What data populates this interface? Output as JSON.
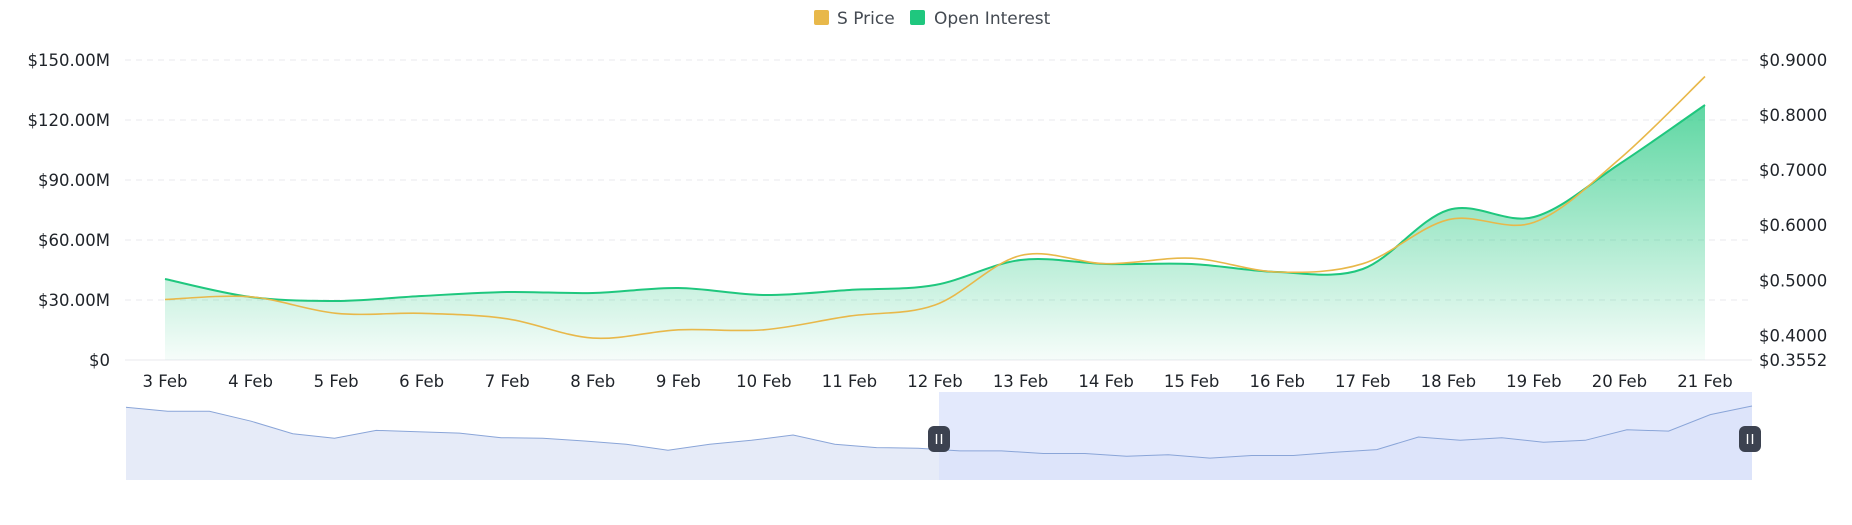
{
  "colors": {
    "price": "#e8b84a",
    "open_interest": "#1fc77e",
    "grid": "#e8eaee",
    "navigator_line": "#8aa5d8",
    "navigator_fill": "#e6ebf8",
    "navigator_selected": "#d9e2fb",
    "handle": "#3c4250"
  },
  "chart_data": {
    "type": "line",
    "legend_position": "top-center",
    "grid": true,
    "categories": [
      "3 Feb",
      "4 Feb",
      "5 Feb",
      "6 Feb",
      "7 Feb",
      "8 Feb",
      "9 Feb",
      "10 Feb",
      "11 Feb",
      "12 Feb",
      "13 Feb",
      "14 Feb",
      "15 Feb",
      "16 Feb",
      "17 Feb",
      "18 Feb",
      "19 Feb",
      "20 Feb",
      "21 Feb"
    ],
    "y_left": {
      "ticks": [
        0,
        30000000,
        60000000,
        90000000,
        120000000,
        150000000
      ],
      "tick_labels": [
        "$0",
        "$30.00M",
        "$60.00M",
        "$90.00M",
        "$120.00M",
        "$150.00M"
      ],
      "range": [
        0,
        150000000
      ]
    },
    "y_right": {
      "ticks": [
        0.3552,
        0.4,
        0.5,
        0.6,
        0.7,
        0.8,
        0.9
      ],
      "tick_labels": [
        "$0.3552",
        "$0.4000",
        "$0.5000",
        "$0.6000",
        "$0.7000",
        "$0.8000",
        "$0.9000"
      ],
      "range": [
        0.3552,
        0.9
      ]
    },
    "series": [
      {
        "name": "S Price",
        "axis": "right",
        "style": "line",
        "values": [
          0.465,
          0.47,
          0.44,
          0.44,
          0.43,
          0.395,
          0.41,
          0.41,
          0.435,
          0.455,
          0.545,
          0.53,
          0.54,
          0.515,
          0.53,
          0.61,
          0.605,
          0.72,
          0.87
        ]
      },
      {
        "name": "Open Interest",
        "axis": "left",
        "style": "area",
        "values": [
          40500000,
          31500000,
          29500000,
          32000000,
          34000000,
          33500000,
          36000000,
          32500000,
          35000000,
          37500000,
          50000000,
          48000000,
          48000000,
          44000000,
          45500000,
          75000000,
          71500000,
          98000000,
          127500000
        ]
      }
    ],
    "navigator": {
      "values": [
        0.98,
        0.92,
        0.92,
        0.77,
        0.58,
        0.51,
        0.63,
        0.61,
        0.59,
        0.52,
        0.51,
        0.47,
        0.42,
        0.33,
        0.42,
        0.48,
        0.56,
        0.42,
        0.37,
        0.36,
        0.32,
        0.32,
        0.28,
        0.28,
        0.24,
        0.26,
        0.21,
        0.25,
        0.25,
        0.3,
        0.34,
        0.53,
        0.48,
        0.52,
        0.45,
        0.48,
        0.64,
        0.62,
        0.87,
        1.0
      ],
      "selection": [
        0.5,
        1.0
      ]
    }
  }
}
